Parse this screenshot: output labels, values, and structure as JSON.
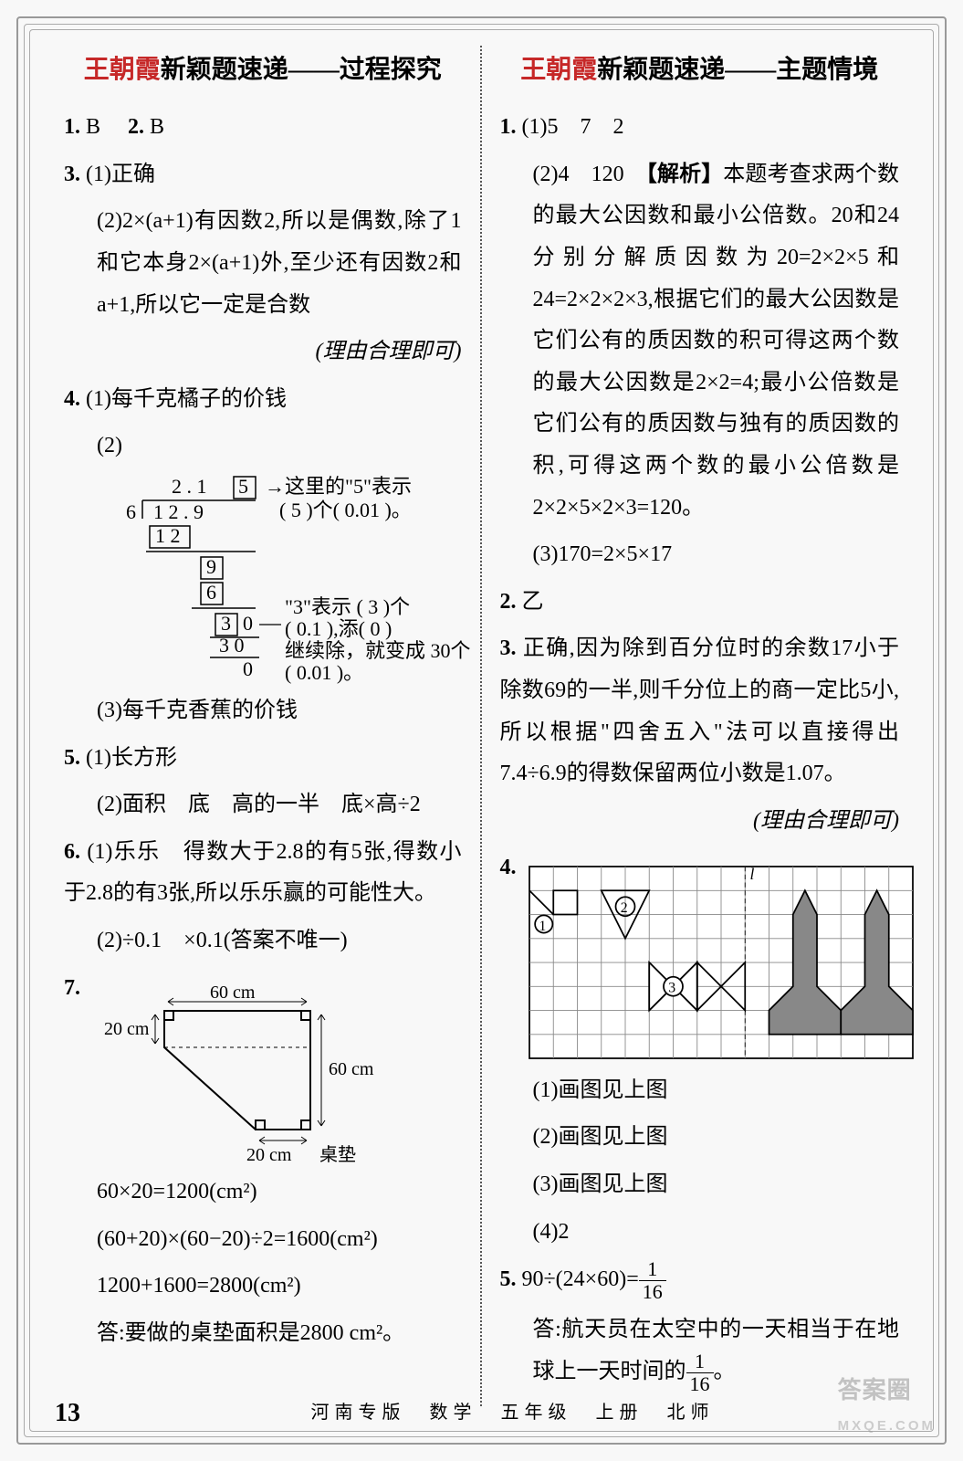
{
  "left": {
    "heading_brand": "王朝霞",
    "heading_main": "新颖题速递——过程探究",
    "q1": "1.",
    "q1a": "B",
    "q2": "2.",
    "q2a": "B",
    "q3": "3.",
    "q3_1": "(1)正确",
    "q3_2": "(2)2×(a+1)有因数2,所以是偶数,除了1和它本身2×(a+1)外,至少还有因数2和a+1,所以它一定是合数",
    "q3_note": "(理由合理即可)",
    "q4": "4.",
    "q4_1": "(1)每千克橘子的价钱",
    "q4_2": "(2)",
    "q4_3": "(3)每千克香蕉的价钱",
    "division": {
      "quotient_digits": "2 . 1 5",
      "box_digit": "5",
      "dividend": "1 2 . 9",
      "divisor": "6",
      "line_12": "1 2",
      "line_9": "9",
      "line_6": "6",
      "line_30a": "3 0",
      "line_30b": "3 0",
      "line_0": "0",
      "note1a": "→这里的\"5\"表示",
      "note1b": "(   5   )个( 0.01 )。",
      "note2a": "\"3\"表示 (   3   )个",
      "note2b": "(  0.1  ),添(   0   )",
      "note2c": "继续除，就变成 30个",
      "note2d": "( 0.01 )。"
    },
    "q5": "5.",
    "q5_1": "(1)长方形",
    "q5_2": "(2)面积　底　高的一半　底×高÷2",
    "q6": "6.",
    "q6_1": "(1)乐乐　得数大于2.8的有5张,得数小于2.8的有3张,所以乐乐赢的可能性大。",
    "q6_2": "(2)÷0.1　×0.1(答案不唯一)",
    "q7": "7.",
    "q7_labels": {
      "top": "60 cm",
      "left": "20 cm",
      "right": "60 cm",
      "bottom": "20 cm",
      "name": "桌垫"
    },
    "q7_calc1": "60×20=1200(cm²)",
    "q7_calc2": "(60+20)×(60−20)÷2=1600(cm²)",
    "q7_calc3": "1200+1600=2800(cm²)",
    "q7_ans": "答:要做的桌垫面积是2800 cm²。"
  },
  "right": {
    "heading_brand": "王朝霞",
    "heading_main": "新颖题速递——主题情境",
    "q1": "1.",
    "q1_1": "(1)5　7　2",
    "q1_2_pre": "(2)4　120　",
    "q1_2_tag": "【解析】",
    "q1_2_body": "本题考查求两个数的最大公因数和最小公倍数。20和24分别分解质因数为20=2×2×5和24=2×2×2×3,根据它们的最大公因数是它们公有的质因数的积可得这两个数的最大公因数是2×2=4;最小公倍数是它们公有的质因数与独有的质因数的积,可得这两个数的最小公倍数是2×2×5×2×3=120。",
    "q1_3": "(3)170=2×5×17",
    "q2": "2.",
    "q2a": "乙",
    "q3": "3.",
    "q3_body": "正确,因为除到百分位时的余数17小于除数69的一半,则千分位上的商一定比5小,所以根据\"四舍五入\"法可以直接得出7.4÷6.9的得数保留两位小数是1.07。",
    "q3_note": "(理由合理即可)",
    "q4": "4.",
    "q4_grid": {
      "cols": 16,
      "rows": 8,
      "cell": 30,
      "line_color": "#000",
      "axis_label": "l"
    },
    "q4_1": "(1)画图见上图",
    "q4_2": "(2)画图见上图",
    "q4_3": "(3)画图见上图",
    "q4_4": "(4)2",
    "q5": "5.",
    "q5_expr_pre": "90÷(24×60)=",
    "q5_frac_t": "1",
    "q5_frac_b": "16",
    "q5_ans_pre": "答:航天员在太空中的一天相当于在地球上一天时间的",
    "q5_ans_post": "。"
  },
  "footer": {
    "page": "13",
    "text": "河南专版　数学　五年级　上册　北师"
  },
  "watermark": {
    "top": "答案圈",
    "bottom": "MXQE.COM"
  }
}
